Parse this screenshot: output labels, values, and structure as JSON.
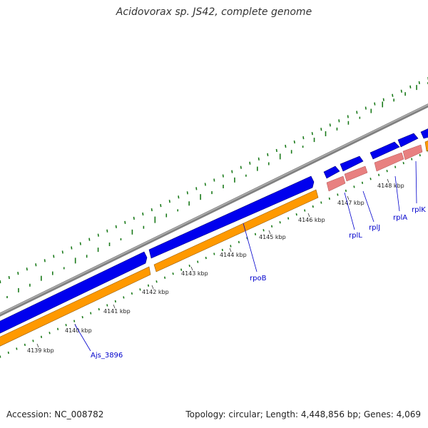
{
  "title": "Acidovorax sp. JS42, complete genome",
  "footer": {
    "accession": "Accession: NC_008782",
    "summary": "Topology: circular; Length: 4,448,856 bp; Genes: 4,069"
  },
  "colors": {
    "backbone": "#808080",
    "forward_cds": "#0000ee",
    "reverse_cds": "#ff9900",
    "rna": "#e88080",
    "gc_ticks": "#1a7a1a",
    "labels": "#0000cc"
  },
  "kbp_ticks": [
    "4139 kbp",
    "4140 kbp",
    "4141 kbp",
    "4142 kbp",
    "4143 kbp",
    "4144 kbp",
    "4145 kbp",
    "4146 kbp",
    "4147 kbp",
    "4148 kbp"
  ],
  "gene_labels": [
    "Ajs_3896",
    "rpoB",
    "rplL",
    "rplJ",
    "rplA",
    "rplK"
  ]
}
